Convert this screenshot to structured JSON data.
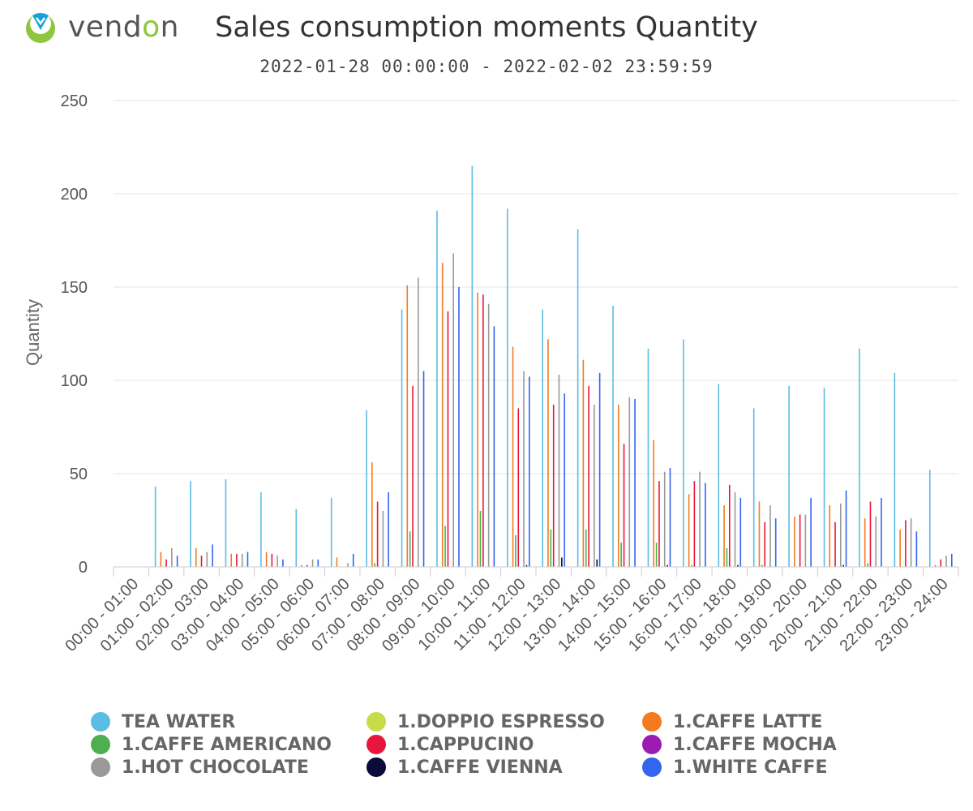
{
  "brand": {
    "name_part1": "vend",
    "name_part2": "o",
    "name_part3": "n"
  },
  "chart_data": {
    "type": "bar",
    "title": "Sales consumption moments Quantity",
    "subtitle": "2022-01-28 00:00:00 - 2022-02-02 23:59:59",
    "ylabel": "Quantity",
    "xlabel": "",
    "ylim": [
      0,
      250
    ],
    "yticks": [
      0,
      50,
      100,
      150,
      200,
      250
    ],
    "grid": true,
    "legend_position": "bottom",
    "categories": [
      "00:00 - 01:00",
      "01:00 - 02:00",
      "02:00 - 03:00",
      "03:00 - 04:00",
      "04:00 - 05:00",
      "05:00 - 06:00",
      "06:00 - 07:00",
      "07:00 - 08:00",
      "08:00 - 09:00",
      "09:00 - 10:00",
      "10:00 - 11:00",
      "11:00 - 12:00",
      "12:00 - 13:00",
      "13:00 - 14:00",
      "14:00 - 15:00",
      "15:00 - 16:00",
      "16:00 - 17:00",
      "17:00 - 18:00",
      "18:00 - 19:00",
      "19:00 - 20:00",
      "20:00 - 21:00",
      "21:00 - 22:00",
      "22:00 - 23:00",
      "23:00 - 24:00"
    ],
    "series": [
      {
        "name": "TEA WATER",
        "color": "#5bbde4",
        "values": [
          0,
          43,
          46,
          47,
          40,
          31,
          37,
          84,
          138,
          191,
          215,
          192,
          138,
          181,
          140,
          117,
          122,
          98,
          85,
          97,
          96,
          117,
          104,
          52
        ]
      },
      {
        "name": "1.DOPPIO ESPRESSO",
        "color": "#c8dc4a",
        "values": [
          0,
          0,
          0,
          0,
          0,
          0,
          0,
          0,
          0,
          0,
          0,
          0,
          0,
          0,
          0,
          0,
          0,
          0,
          0,
          0,
          0,
          0,
          0,
          0
        ]
      },
      {
        "name": "1.CAFFE LATTE",
        "color": "#f47a20",
        "values": [
          0,
          8,
          10,
          7,
          8,
          1,
          5,
          56,
          151,
          163,
          147,
          118,
          122,
          111,
          87,
          68,
          39,
          33,
          35,
          27,
          33,
          26,
          20,
          1
        ]
      },
      {
        "name": "1.CAFFE AMERICANO",
        "color": "#4caf50",
        "values": [
          0,
          0,
          0,
          0,
          0,
          0,
          0,
          2,
          19,
          22,
          30,
          17,
          20,
          20,
          13,
          13,
          1,
          10,
          1,
          0,
          0,
          2,
          0,
          0
        ]
      },
      {
        "name": "1.CAPPUCINO",
        "color": "#e8163c",
        "values": [
          0,
          4,
          6,
          7,
          7,
          1,
          0,
          35,
          97,
          137,
          146,
          85,
          87,
          97,
          66,
          46,
          46,
          44,
          24,
          28,
          24,
          35,
          25,
          4
        ]
      },
      {
        "name": "1.CAFFE MOCHA",
        "color": "#9b1bb5",
        "values": [
          0,
          0,
          0,
          0,
          0,
          0,
          0,
          0,
          0,
          0,
          0,
          0,
          0,
          0,
          0,
          0,
          0,
          0,
          0,
          0,
          0,
          0,
          0,
          0
        ]
      },
      {
        "name": "1.HOT CHOCOLATE",
        "color": "#999999",
        "values": [
          0,
          10,
          8,
          7,
          6,
          4,
          2,
          30,
          155,
          168,
          141,
          105,
          103,
          87,
          91,
          51,
          51,
          40,
          33,
          28,
          34,
          27,
          26,
          6
        ]
      },
      {
        "name": "1.CAFFE VIENNA",
        "color": "#0b0b3a",
        "values": [
          0,
          0,
          0,
          0,
          0,
          0,
          0,
          0,
          0,
          0,
          0,
          1,
          5,
          4,
          0,
          1,
          0,
          1,
          0,
          0,
          1,
          0,
          0,
          0
        ]
      },
      {
        "name": "1.WHITE CAFFE",
        "color": "#3366ee",
        "values": [
          0,
          6,
          12,
          8,
          4,
          4,
          7,
          40,
          105,
          150,
          129,
          102,
          93,
          104,
          90,
          53,
          45,
          37,
          26,
          37,
          41,
          37,
          19,
          7
        ]
      }
    ]
  }
}
